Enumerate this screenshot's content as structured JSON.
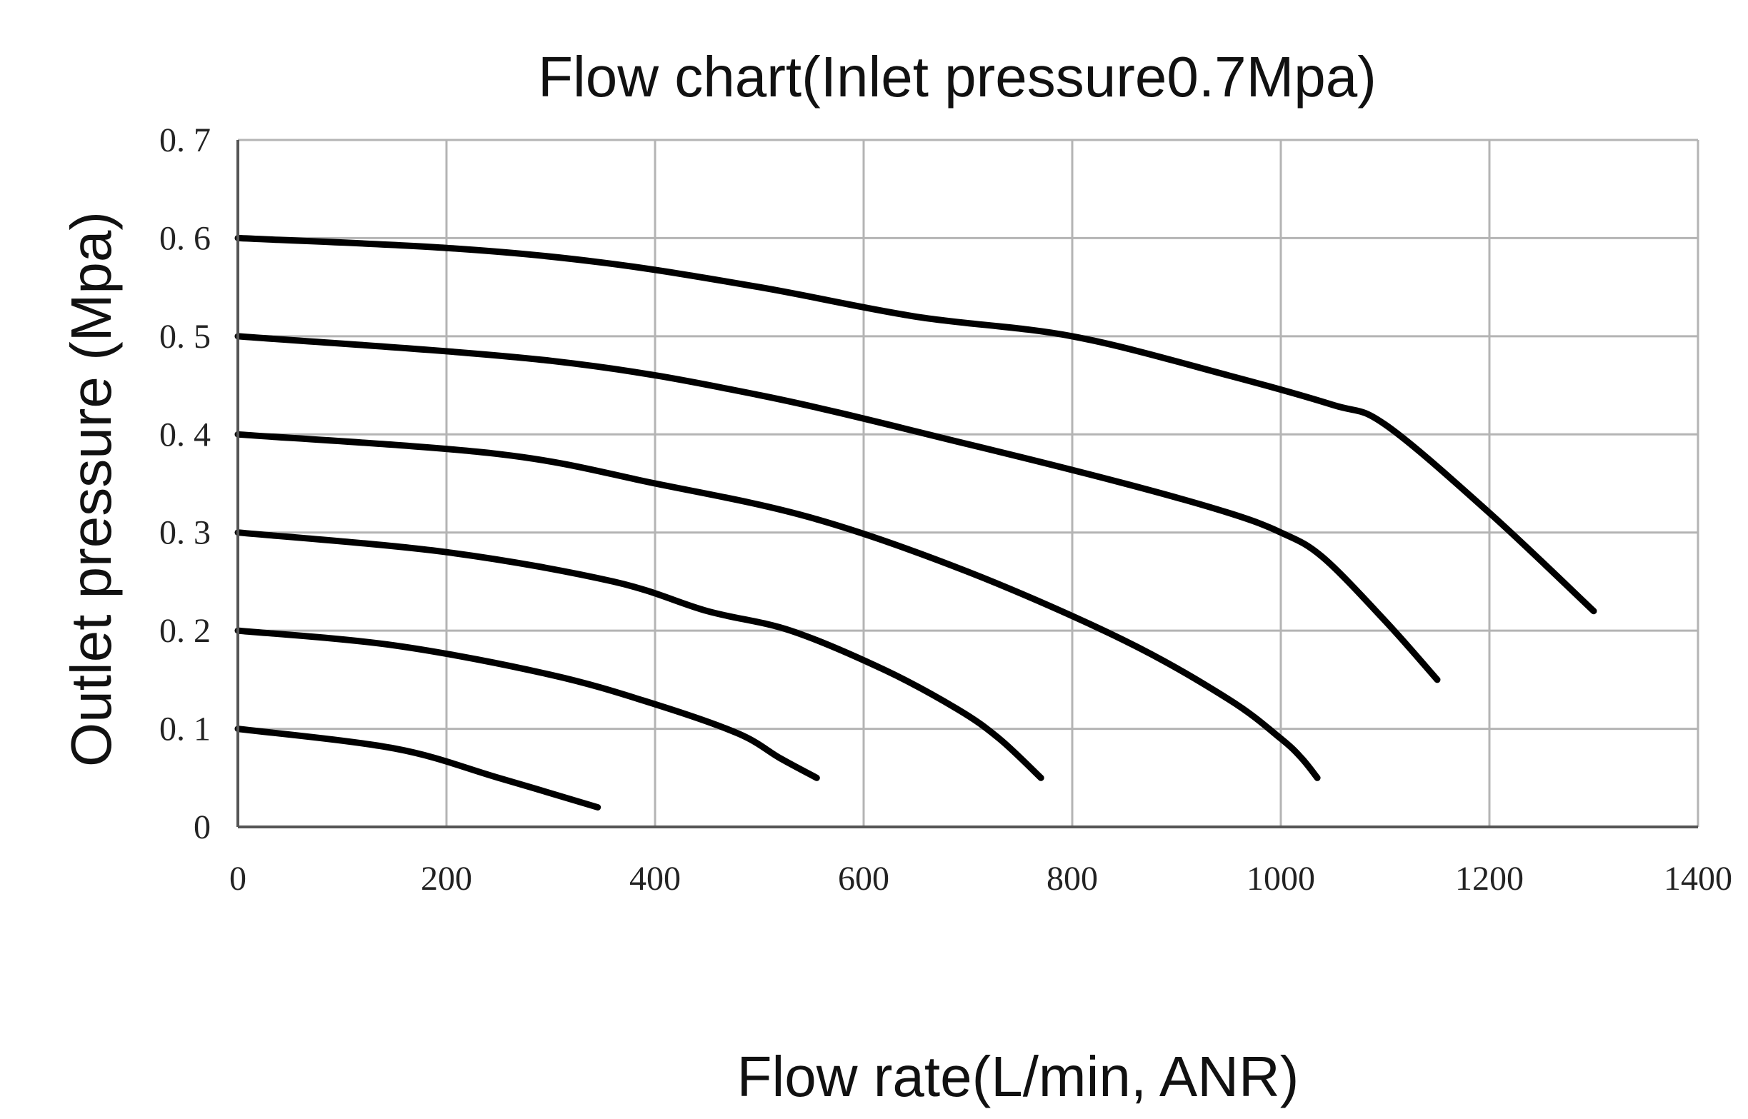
{
  "chart_data": {
    "type": "line",
    "title": "Flow chart(Inlet pressure0.7Mpa)",
    "xlabel": "Flow rate(L/min, ANR)",
    "ylabel": "Outlet pressure (Mpa)",
    "xlim": [
      0,
      1400
    ],
    "ylim": [
      0,
      0.7
    ],
    "x_ticks": [
      "0",
      "200",
      "400",
      "600",
      "800",
      "1000",
      "1200",
      "1400"
    ],
    "y_ticks": [
      "0",
      "0. 1",
      "0. 2",
      "0. 3",
      "0. 4",
      "0. 5",
      "0. 6",
      "0. 7"
    ],
    "grid": true,
    "legend": "none",
    "series": [
      {
        "x": [
          0,
          150,
          250,
          345
        ],
        "y": [
          0.1,
          0.08,
          0.05,
          0.02
        ]
      },
      {
        "x": [
          0,
          150,
          300,
          400,
          480,
          520,
          555
        ],
        "y": [
          0.2,
          0.185,
          0.155,
          0.125,
          0.095,
          0.07,
          0.05
        ]
      },
      {
        "x": [
          0,
          200,
          360,
          450,
          530,
          620,
          690,
          730,
          770
        ],
        "y": [
          0.3,
          0.28,
          0.25,
          0.22,
          0.2,
          0.16,
          0.12,
          0.09,
          0.05
        ]
      },
      {
        "x": [
          0,
          250,
          400,
          550,
          700,
          850,
          950,
          1000,
          1020,
          1035
        ],
        "y": [
          0.4,
          0.38,
          0.35,
          0.315,
          0.26,
          0.19,
          0.13,
          0.09,
          0.07,
          0.05
        ]
      },
      {
        "x": [
          0,
          300,
          500,
          700,
          850,
          950,
          1000,
          1040,
          1100,
          1150
        ],
        "y": [
          0.5,
          0.475,
          0.44,
          0.39,
          0.35,
          0.32,
          0.3,
          0.275,
          0.21,
          0.15
        ]
      },
      {
        "x": [
          0,
          200,
          350,
          500,
          650,
          800,
          950,
          1050,
          1100,
          1200,
          1300
        ],
        "y": [
          0.6,
          0.59,
          0.575,
          0.55,
          0.52,
          0.5,
          0.46,
          0.43,
          0.41,
          0.32,
          0.22
        ]
      }
    ]
  }
}
